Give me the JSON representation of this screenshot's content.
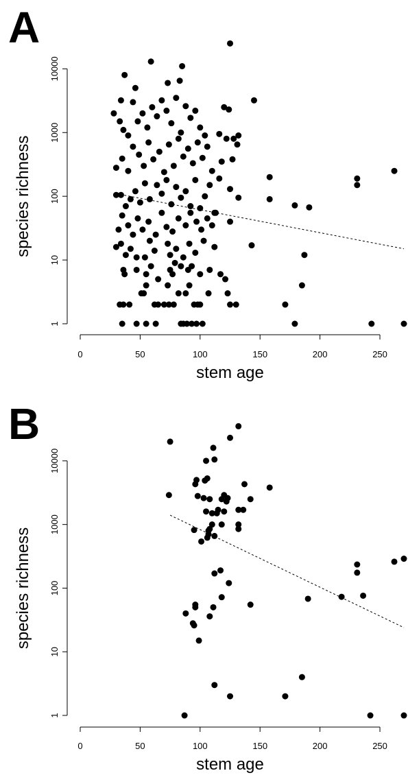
{
  "chart_data": [
    {
      "type": "scatter",
      "panel_label": "A",
      "xlabel": "stem age",
      "ylabel": "species richness",
      "log_y": true,
      "color": "#000000",
      "xlim": [
        25,
        272
      ],
      "ylim": [
        0.8,
        30000
      ],
      "xticks": [
        0,
        50,
        100,
        150,
        200,
        250
      ],
      "yticks": [
        1,
        10,
        100,
        1000,
        10000
      ],
      "x": [
        35,
        47,
        55,
        63,
        84,
        86,
        89,
        93,
        97,
        102,
        179,
        243,
        270,
        33,
        36,
        41,
        62,
        65,
        70,
        74,
        78,
        95,
        98,
        100,
        125,
        130,
        171,
        51,
        53,
        82,
        88,
        107,
        123,
        55,
        73,
        91,
        185,
        36,
        37,
        47,
        55,
        59,
        65,
        75,
        77,
        79,
        84,
        90,
        93,
        100,
        108,
        117,
        121,
        30,
        34,
        38,
        42,
        47,
        54,
        58,
        62,
        73,
        75,
        80,
        86,
        91,
        96,
        103,
        112,
        143,
        187,
        35,
        40,
        44,
        48,
        52,
        57,
        63,
        68,
        72,
        77,
        82,
        88,
        92,
        97,
        101,
        106,
        110,
        113,
        125,
        32,
        30,
        34,
        38,
        42,
        46,
        50,
        54,
        58,
        64,
        68,
        72,
        76,
        80,
        84,
        88,
        92,
        96,
        100,
        104,
        108,
        112,
        116,
        125,
        132,
        158,
        158,
        179,
        191,
        231,
        231,
        262,
        30,
        35,
        40,
        44,
        49,
        53,
        57,
        61,
        66,
        70,
        74,
        78,
        82,
        86,
        90,
        94,
        98,
        102,
        106,
        110,
        118,
        127,
        131,
        122,
        28,
        33,
        36,
        40,
        44,
        48,
        52,
        56,
        60,
        64,
        68,
        72,
        76,
        80,
        84,
        88,
        92,
        96,
        100,
        104,
        116,
        120,
        124,
        128,
        132,
        145,
        46,
        73,
        34,
        37,
        59,
        85,
        125,
        83
      ],
      "values": [
        1,
        1,
        1,
        1,
        1,
        1,
        1,
        1,
        1,
        1,
        1,
        1,
        1,
        2,
        2,
        2,
        2,
        2,
        2,
        2,
        2,
        2,
        2,
        2,
        2,
        2,
        2,
        3,
        3,
        3,
        3,
        3,
        3,
        4,
        4,
        4,
        4,
        7,
        6,
        7,
        6,
        8,
        5,
        7,
        6,
        9,
        8,
        7,
        8,
        6,
        7,
        6,
        5,
        16,
        18,
        12,
        15,
        11,
        11,
        20,
        14,
        18,
        12,
        15,
        11,
        18,
        13,
        20,
        16,
        17,
        12,
        50,
        35,
        25,
        45,
        30,
        40,
        25,
        55,
        33,
        28,
        45,
        35,
        55,
        40,
        30,
        45,
        35,
        55,
        40,
        30,
        105,
        105,
        70,
        90,
        120,
        80,
        160,
        90,
        150,
        110,
        180,
        75,
        140,
        95,
        120,
        70,
        180,
        65,
        100,
        150,
        55,
        190,
        130,
        95,
        200,
        90,
        72,
        67,
        190,
        150,
        250,
        280,
        390,
        250,
        600,
        450,
        300,
        700,
        380,
        500,
        240,
        650,
        300,
        800,
        420,
        560,
        330,
        700,
        400,
        600,
        250,
        350,
        380,
        650,
        800,
        2000,
        1500,
        1100,
        900,
        3000,
        1500,
        2000,
        1200,
        2500,
        1800,
        3200,
        2200,
        1400,
        3500,
        1000,
        2600,
        1700,
        2200,
        1200,
        900,
        950,
        2500,
        2300,
        800,
        900,
        3200,
        5000,
        6000,
        3200,
        8000,
        13000,
        11000,
        25000,
        6500
      ],
      "trend_line": {
        "x": [
          30,
          270
        ],
        "y": [
          110,
          15
        ]
      }
    },
    {
      "type": "scatter",
      "panel_label": "B",
      "xlabel": "stem age",
      "ylabel": "species richness",
      "log_y": true,
      "color": "#000000",
      "xlim": [
        25,
        272
      ],
      "ylim": [
        0.8,
        40000
      ],
      "xticks": [
        0,
        50,
        100,
        150,
        200,
        250
      ],
      "yticks": [
        1,
        10,
        100,
        1000,
        10000
      ],
      "x": [
        75,
        74,
        87,
        242,
        270,
        112,
        125,
        171,
        185,
        99,
        95,
        94,
        96,
        96,
        88,
        108,
        111,
        118,
        124,
        142,
        112,
        117,
        190,
        218,
        236,
        231,
        231,
        262,
        270,
        101,
        106,
        107,
        95,
        108,
        110,
        112,
        114,
        118,
        120,
        122,
        123,
        118,
        105,
        103,
        96,
        97,
        104,
        106,
        98,
        108,
        115,
        110,
        120,
        132,
        132,
        132,
        136,
        137,
        142,
        158,
        105,
        111,
        112,
        125,
        132,
        107
      ],
      "values": [
        20000,
        2900,
        1,
        1,
        1,
        3,
        2,
        2,
        4,
        15,
        26,
        28,
        50,
        55,
        40,
        36,
        50,
        72,
        120,
        55,
        170,
        190,
        68,
        73,
        76,
        175,
        235,
        260,
        290,
        540,
        620,
        700,
        820,
        850,
        1000,
        660,
        1500,
        1000,
        1600,
        2300,
        2600,
        2500,
        1600,
        2600,
        4300,
        5000,
        4900,
        5300,
        2800,
        2500,
        1700,
        1500,
        2900,
        850,
        1000,
        1700,
        1700,
        4300,
        2500,
        3800,
        10000,
        16000,
        10500,
        23000,
        35000,
        800
      ],
      "trend_line": {
        "x": [
          75,
          270
        ],
        "y": [
          1400,
          24
        ]
      }
    }
  ]
}
